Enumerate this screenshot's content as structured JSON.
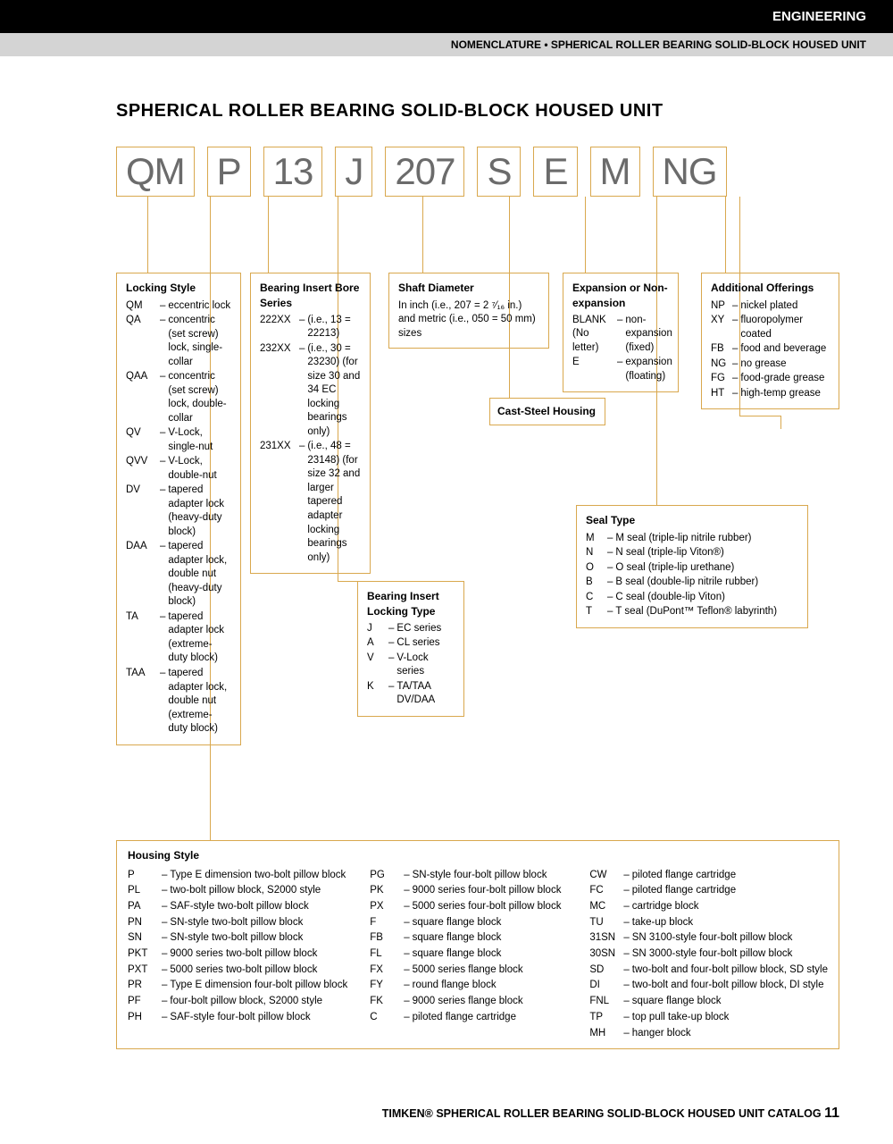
{
  "header": {
    "section": "ENGINEERING",
    "subsection": "NOMENCLATURE • SPHERICAL ROLLER BEARING SOLID-BLOCK HOUSED UNIT"
  },
  "title": "SPHERICAL ROLLER BEARING SOLID-BLOCK HOUSED UNIT",
  "code_segments": [
    "QM",
    "P",
    "13",
    "J",
    "207",
    "S",
    "E",
    "M",
    "NG"
  ],
  "locking_style": {
    "title": "Locking Style",
    "items": [
      {
        "code": "QM",
        "desc": "eccentric lock"
      },
      {
        "code": "QA",
        "desc": "concentric (set screw) lock, single-collar"
      },
      {
        "code": "QAA",
        "desc": "concentric (set screw) lock, double-collar"
      },
      {
        "code": "QV",
        "desc": "V-Lock, single-nut"
      },
      {
        "code": "QVV",
        "desc": "V-Lock, double-nut"
      },
      {
        "code": "DV",
        "desc": "tapered adapter lock (heavy-duty block)"
      },
      {
        "code": "DAA",
        "desc": "tapered adapter lock, double nut (heavy-duty block)"
      },
      {
        "code": "TA",
        "desc": "tapered adapter lock (extreme-duty block)"
      },
      {
        "code": "TAA",
        "desc": "tapered adapter lock, double nut (extreme-duty block)"
      }
    ]
  },
  "bore_series": {
    "title": "Bearing Insert Bore Series",
    "items": [
      {
        "code": "222XX",
        "desc": "(i.e., 13 = 22213)"
      },
      {
        "code": "232XX",
        "desc": "(i.e., 30 = 23230) (for size 30 and 34 EC locking bearings only)"
      },
      {
        "code": "231XX",
        "desc": "(i.e., 48 = 23148) (for size 32 and larger tapered adapter locking bearings only)"
      }
    ]
  },
  "shaft_diameter": {
    "title": "Shaft Diameter",
    "text": "In inch (i.e., 207 = 2 ⁷⁄₁₆ in.) and metric (i.e., 050 = 50 mm) sizes"
  },
  "locking_type": {
    "title": "Bearing Insert Locking Type",
    "items": [
      {
        "code": "J",
        "desc": "EC series"
      },
      {
        "code": "A",
        "desc": "CL series"
      },
      {
        "code": "V",
        "desc": "V-Lock series"
      },
      {
        "code": "K",
        "desc": "TA/TAA DV/DAA"
      }
    ]
  },
  "cast_steel": {
    "title": "Cast-Steel Housing"
  },
  "expansion": {
    "title": "Expansion or Non-expansion",
    "items": [
      {
        "code": "BLANK (No letter)",
        "desc": "non-expansion (fixed)"
      },
      {
        "code": "E",
        "desc": "expansion (floating)"
      }
    ]
  },
  "seal_type": {
    "title": "Seal Type",
    "items": [
      {
        "code": "M",
        "desc": "M seal (triple-lip nitrile rubber)"
      },
      {
        "code": "N",
        "desc": "N seal (triple-lip Viton®)"
      },
      {
        "code": "O",
        "desc": "O seal (triple-lip urethane)"
      },
      {
        "code": "B",
        "desc": "B seal (double-lip nitrile rubber)"
      },
      {
        "code": "C",
        "desc": "C seal (double-lip Viton)"
      },
      {
        "code": "T",
        "desc": "T seal (DuPont™ Teflon® labyrinth)"
      }
    ]
  },
  "additional": {
    "title": "Additional Offerings",
    "items": [
      {
        "code": "NP",
        "desc": "nickel plated"
      },
      {
        "code": "XY",
        "desc": "fluoropolymer coated"
      },
      {
        "code": "FB",
        "desc": "food and beverage"
      },
      {
        "code": "NG",
        "desc": "no grease"
      },
      {
        "code": "FG",
        "desc": "food-grade grease"
      },
      {
        "code": "HT",
        "desc": "high-temp grease"
      }
    ]
  },
  "housing": {
    "title": "Housing Style",
    "col1": [
      {
        "code": "P",
        "desc": "Type E dimension two-bolt pillow block"
      },
      {
        "code": "PL",
        "desc": "two-bolt pillow block, S2000 style"
      },
      {
        "code": "PA",
        "desc": "SAF-style two-bolt pillow block"
      },
      {
        "code": "PN",
        "desc": "SN-style two-bolt pillow block"
      },
      {
        "code": "SN",
        "desc": "SN-style two-bolt pillow block"
      },
      {
        "code": "PKT",
        "desc": "9000 series two-bolt pillow block"
      },
      {
        "code": "PXT",
        "desc": "5000 series two-bolt pillow block"
      },
      {
        "code": "PR",
        "desc": "Type E dimension four-bolt pillow block"
      },
      {
        "code": "PF",
        "desc": "four-bolt pillow block, S2000 style"
      },
      {
        "code": "PH",
        "desc": "SAF-style four-bolt pillow block"
      }
    ],
    "col2": [
      {
        "code": "PG",
        "desc": "SN-style four-bolt pillow block"
      },
      {
        "code": "PK",
        "desc": "9000 series four-bolt pillow block"
      },
      {
        "code": "PX",
        "desc": "5000 series four-bolt pillow block"
      },
      {
        "code": "F",
        "desc": "square flange block"
      },
      {
        "code": "FB",
        "desc": "square flange block"
      },
      {
        "code": "FL",
        "desc": "square flange block"
      },
      {
        "code": "FX",
        "desc": "5000 series flange block"
      },
      {
        "code": "FY",
        "desc": "round flange block"
      },
      {
        "code": "FK",
        "desc": "9000 series flange block"
      },
      {
        "code": "C",
        "desc": "piloted flange cartridge"
      }
    ],
    "col3": [
      {
        "code": "CW",
        "desc": "piloted flange cartridge"
      },
      {
        "code": "FC",
        "desc": "piloted flange cartridge"
      },
      {
        "code": "MC",
        "desc": "cartridge block"
      },
      {
        "code": "TU",
        "desc": "take-up block"
      },
      {
        "code": "31SN",
        "desc": "SN 3100-style four-bolt pillow block"
      },
      {
        "code": "30SN",
        "desc": "SN 3000-style four-bolt pillow block"
      },
      {
        "code": "SD",
        "desc": "two-bolt and four-bolt pillow block, SD style"
      },
      {
        "code": "DI",
        "desc": "two-bolt and four-bolt pillow block, DI style"
      },
      {
        "code": "FNL",
        "desc": "square flange block"
      },
      {
        "code": "TP",
        "desc": "top pull take-up block"
      },
      {
        "code": "MH",
        "desc": "hanger block"
      }
    ]
  },
  "footer": {
    "brand": "TIMKEN®",
    "text": "SPHERICAL ROLLER BEARING SOLID-BLOCK HOUSED UNIT CATALOG",
    "page": "11"
  },
  "colors": {
    "box_border": "#d9a84e",
    "code_text": "#6b6b6b",
    "black": "#000000",
    "gray_bar": "#d4d4d4"
  }
}
